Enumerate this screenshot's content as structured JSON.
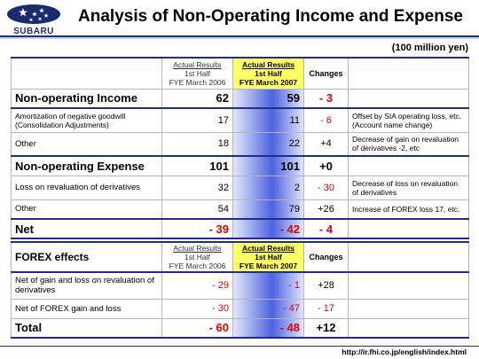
{
  "header": {
    "logo_text": "SUBARU",
    "title": "Analysis of Non-Operating Income and Expense",
    "unit": "(100 million yen)"
  },
  "columns": {
    "prior": [
      "Actual Results",
      "1st Half",
      "FYE March 2006"
    ],
    "current": [
      "Actual Results",
      "1st Half",
      "FYE March 2007"
    ],
    "changes": "Changes"
  },
  "table1": [
    {
      "label": "Non-operating Income",
      "v2006": "62",
      "v2007": "59",
      "change": "- 3",
      "note": ""
    },
    {
      "label": "Amortization of negative goodwill (Consolidation Adjustments)",
      "v2006": "17",
      "v2007": "11",
      "change": "- 6",
      "note": "Offset by SIA operating loss, etc. (Account name change)"
    },
    {
      "label": "Other",
      "v2006": "18",
      "v2007": "22",
      "change": "+4",
      "note": "Decrease of gain on revaluation of derivatives -2, etc"
    },
    {
      "label": "Non-operating Expense",
      "v2006": "101",
      "v2007": "101",
      "change": "+0",
      "note": ""
    },
    {
      "label": "Loss on revaluation of derivatives",
      "v2006": "32",
      "v2007": "2",
      "change": "- 30",
      "note": "Decrease of loss on revaluation of derivatives"
    },
    {
      "label": "Other",
      "v2006": "54",
      "v2007": "79",
      "change": "+26",
      "note": "Increase of FOREX loss 17, etc."
    },
    {
      "label": "Net",
      "v2006": "- 39",
      "v2007": "- 42",
      "change": "- 4",
      "note": ""
    }
  ],
  "table2": {
    "heading": "FOREX effects",
    "rows": [
      {
        "label": "Net of gain and loss on revaluation of derivatives",
        "v2006": "- 29",
        "v2007": "- 1",
        "change": "+28",
        "note": ""
      },
      {
        "label": "Net of FOREX gain and loss",
        "v2006": "- 30",
        "v2007": "- 47",
        "change": "- 17",
        "note": ""
      },
      {
        "label": "Total",
        "v2006": "- 60",
        "v2007": "- 48",
        "change": "+12",
        "note": ""
      }
    ]
  },
  "footer": {
    "url": "http://ir.fhi.co.jp/english/index.html"
  }
}
